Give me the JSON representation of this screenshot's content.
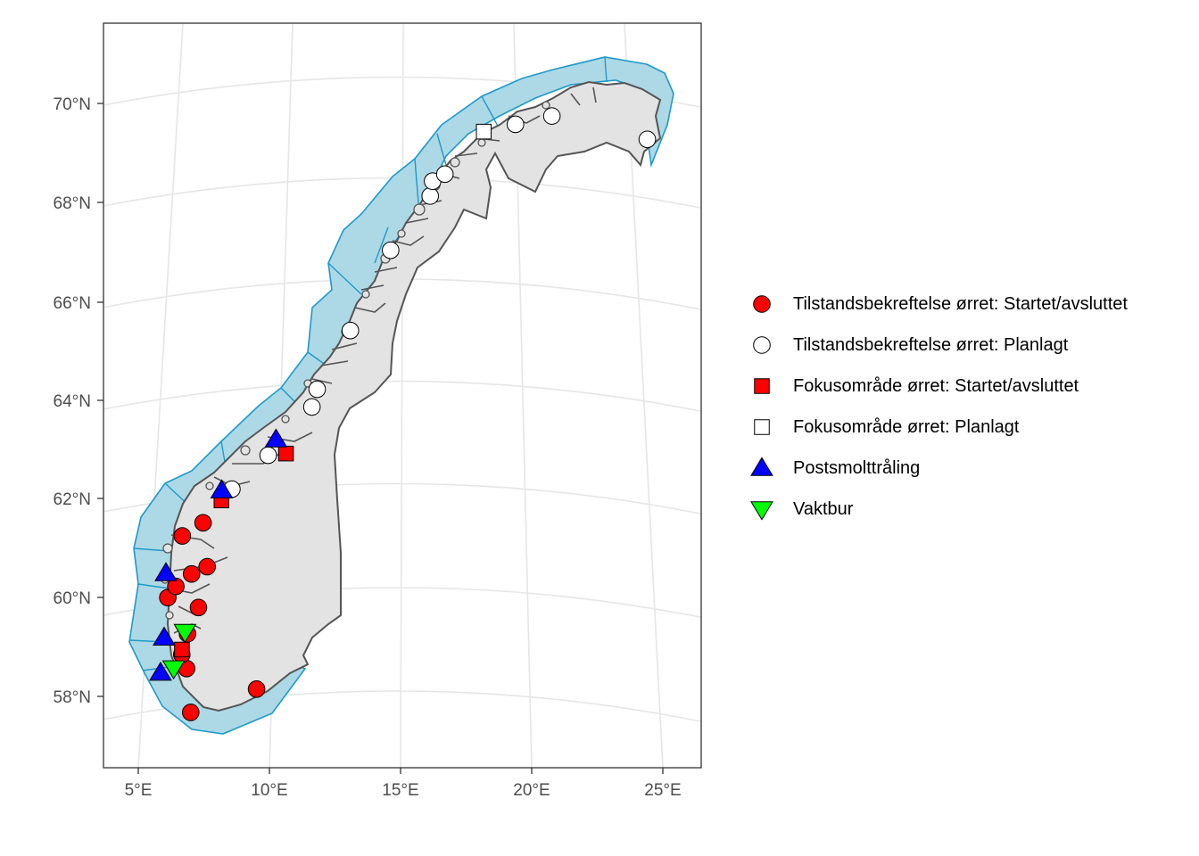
{
  "chart_data": {
    "type": "scatter",
    "subtype": "map",
    "region": "Norway",
    "projection": "conic",
    "title": "",
    "xlabel": "",
    "ylabel": "",
    "xlim": [
      4,
      26
    ],
    "ylim": [
      56.5,
      71.5
    ],
    "grid": true,
    "legend_position": "right",
    "x_ticks": [
      {
        "value": 5,
        "label": "5°E"
      },
      {
        "value": 10,
        "label": "10°E"
      },
      {
        "value": 15,
        "label": "15°E"
      },
      {
        "value": 20,
        "label": "20°E"
      },
      {
        "value": 25,
        "label": "25°E"
      }
    ],
    "y_ticks": [
      {
        "value": 58,
        "label": "58°N"
      },
      {
        "value": 60,
        "label": "60°N"
      },
      {
        "value": 62,
        "label": "62°N"
      },
      {
        "value": 64,
        "label": "64°N"
      },
      {
        "value": 66,
        "label": "66°N"
      },
      {
        "value": 68,
        "label": "68°N"
      },
      {
        "value": 70,
        "label": "70°N"
      }
    ],
    "colors": {
      "land": "#e3e3e3",
      "coast": "#555555",
      "sea_zone": "#add8e6",
      "sea_zone_border": "#1e9ac8",
      "grid": "#e6e6e6",
      "panel_border": "#333333"
    },
    "series": [
      {
        "name": "Tilstandsbekreftelse ørret: Startet/avsluttet",
        "shape": "circle",
        "fill": "#ff0000",
        "points": [
          {
            "lon": 7.0,
            "lat": 58.0
          },
          {
            "lon": 9.5,
            "lat": 58.3
          },
          {
            "lon": 6.8,
            "lat": 58.9
          },
          {
            "lon": 6.6,
            "lat": 59.2
          },
          {
            "lon": 6.8,
            "lat": 59.6
          },
          {
            "lon": 7.2,
            "lat": 60.1
          },
          {
            "lon": 6.0,
            "lat": 60.4
          },
          {
            "lon": 6.3,
            "lat": 60.6
          },
          {
            "lon": 6.9,
            "lat": 60.8
          },
          {
            "lon": 7.5,
            "lat": 60.9
          },
          {
            "lon": 6.5,
            "lat": 61.6
          },
          {
            "lon": 7.3,
            "lat": 61.8
          }
        ]
      },
      {
        "name": "Tilstandsbekreftelse ørret: Planlagt",
        "shape": "circle",
        "fill": "#ffffff",
        "points": [
          {
            "lon": 8.4,
            "lat": 62.4
          },
          {
            "lon": 9.8,
            "lat": 63.0
          },
          {
            "lon": 11.5,
            "lat": 63.9
          },
          {
            "lon": 11.7,
            "lat": 64.25
          },
          {
            "lon": 13.0,
            "lat": 65.4
          },
          {
            "lon": 14.6,
            "lat": 67.0
          },
          {
            "lon": 16.2,
            "lat": 68.1
          },
          {
            "lon": 16.3,
            "lat": 68.4
          },
          {
            "lon": 16.8,
            "lat": 68.55
          },
          {
            "lon": 19.7,
            "lat": 69.65
          },
          {
            "lon": 21.2,
            "lat": 69.9
          },
          {
            "lon": 25.1,
            "lat": 69.75
          }
        ]
      },
      {
        "name": "Fokusområde ørret: Startet/avsluttet",
        "shape": "square",
        "fill": "#ff0000",
        "points": [
          {
            "lon": 8.0,
            "lat": 62.2
          },
          {
            "lon": 10.5,
            "lat": 63.0
          },
          {
            "lon": 6.6,
            "lat": 59.3
          }
        ]
      },
      {
        "name": "Fokusområde ørret: Planlagt",
        "shape": "square",
        "fill": "#ffffff",
        "points": [
          {
            "lon": 18.4,
            "lat": 69.45
          }
        ]
      },
      {
        "name": "Postsmolttråling",
        "shape": "triangle-up",
        "fill": "#0000ff",
        "points": [
          {
            "lon": 8.0,
            "lat": 62.4
          },
          {
            "lon": 10.1,
            "lat": 63.3
          },
          {
            "lon": 5.9,
            "lat": 60.9
          },
          {
            "lon": 5.9,
            "lat": 59.6
          },
          {
            "lon": 5.8,
            "lat": 58.9
          }
        ]
      },
      {
        "name": "Vaktbur",
        "shape": "triangle-down",
        "fill": "#00ff00",
        "points": [
          {
            "lon": 6.7,
            "lat": 59.65
          },
          {
            "lon": 6.3,
            "lat": 58.95
          }
        ]
      }
    ]
  }
}
